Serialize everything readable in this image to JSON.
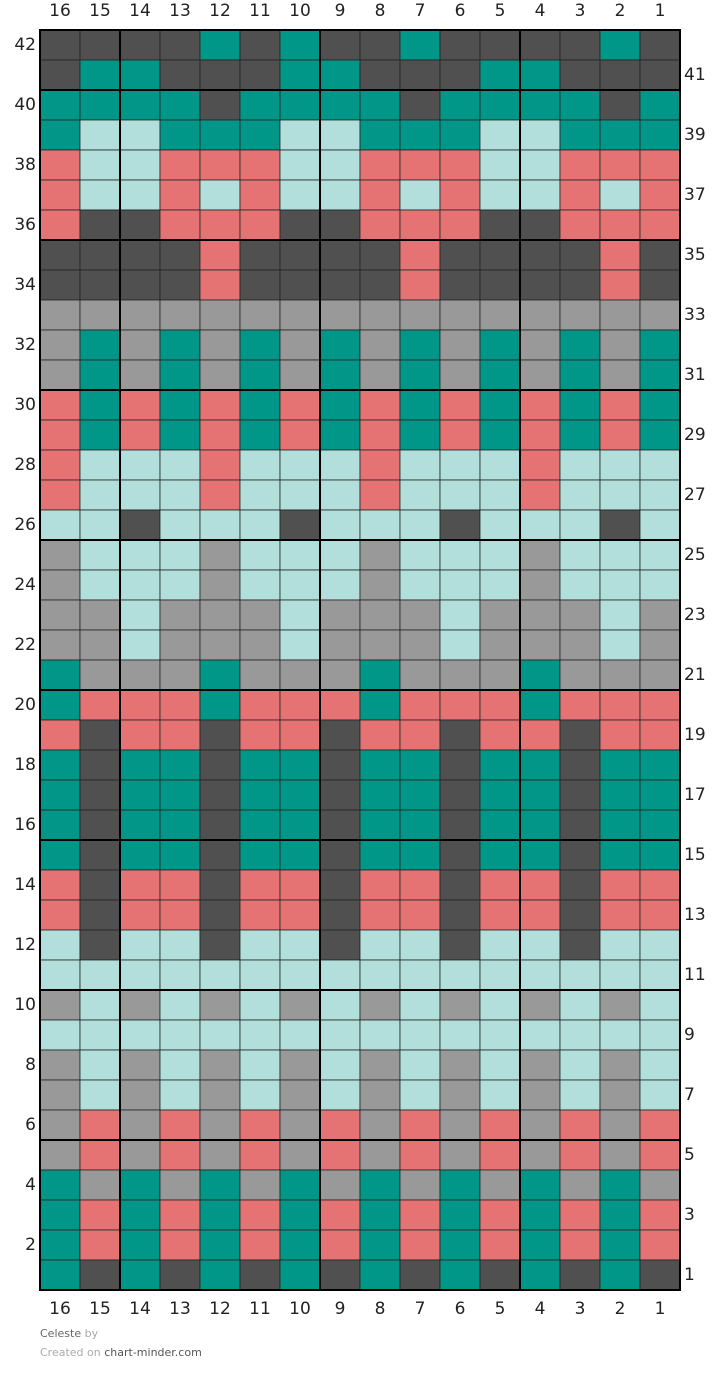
{
  "chart": {
    "columns": [
      16,
      15,
      14,
      13,
      12,
      11,
      10,
      9,
      8,
      7,
      6,
      5,
      4,
      3,
      2,
      1
    ],
    "palette": {
      "D": "#505050",
      "T": "#009688",
      "L": "#b2dfdb",
      "P": "#e57373",
      "G": "#999999"
    },
    "rows": [
      {
        "number": 42,
        "cells": "DDDDTDTDDTDDDDTD"
      },
      {
        "number": 41,
        "cells": "DTTDDDTTDDDTTDDD"
      },
      {
        "number": 40,
        "cells": "TTTTDTTTTDTTTTDT"
      },
      {
        "number": 39,
        "cells": "TLLTTTLLTTTLLTTT"
      },
      {
        "number": 38,
        "cells": "PLLPPPLLPPPLLPPP"
      },
      {
        "number": 37,
        "cells": "PLLPLPLLPLPLLPLP"
      },
      {
        "number": 36,
        "cells": "PDDPPPDDPPPDDPPP"
      },
      {
        "number": 35,
        "cells": "DDDDPDDDDPDDDDPD"
      },
      {
        "number": 34,
        "cells": "DDDDPDDDDPDDDDPD"
      },
      {
        "number": 33,
        "cells": "GGGGGGGGGGGGGGGG"
      },
      {
        "number": 32,
        "cells": "GTGTGTGTGTGTGTGT"
      },
      {
        "number": 31,
        "cells": "GTGTGTGTGTGTGTGT"
      },
      {
        "number": 30,
        "cells": "PTPTPTPTPTPTPTPT"
      },
      {
        "number": 29,
        "cells": "PTPTPTPTPTPTPTPT"
      },
      {
        "number": 28,
        "cells": "PLLLPLLLPLLLPLLL"
      },
      {
        "number": 27,
        "cells": "PLLLPLLLPLLLPLLL"
      },
      {
        "number": 26,
        "cells": "LLDLLLDLLLDLLLDL"
      },
      {
        "number": 25,
        "cells": "GLLLGLLLGLLLGLLL"
      },
      {
        "number": 24,
        "cells": "GLLLGLLLGLLLGLLL"
      },
      {
        "number": 23,
        "cells": "GGLGGGLGGGLGGGLG"
      },
      {
        "number": 22,
        "cells": "GGLGGGLGGGLGGGLG"
      },
      {
        "number": 21,
        "cells": "TGGGTGGGTGGGTGGG"
      },
      {
        "number": 20,
        "cells": "TPPPTPPPTPPPTPPP"
      },
      {
        "number": 19,
        "cells": "PDPPDPPDPPDPPDPP"
      },
      {
        "number": 18,
        "cells": "TDTTDTTDTTDTTDTT"
      },
      {
        "number": 17,
        "cells": "TDTTDTTDTTDTTDTT"
      },
      {
        "number": 16,
        "cells": "TDTTDTTDTTDTTDTT"
      },
      {
        "number": 15,
        "cells": "TDTTDTTDTTDTTDTT"
      },
      {
        "number": 14,
        "cells": "PDPPDPPDPPDPPDPP"
      },
      {
        "number": 13,
        "cells": "PDPPDPPDPPDPPDPP"
      },
      {
        "number": 12,
        "cells": "LDLLDLLDLLDLLDLL"
      },
      {
        "number": 11,
        "cells": "LLLLLLLLLLLLLLLL"
      },
      {
        "number": 10,
        "cells": "GLGLGLGLGLGLGLGL"
      },
      {
        "number": 9,
        "cells": "LLLLLLLLLLLLLLLL"
      },
      {
        "number": 8,
        "cells": "GLGLGLGLGLGLGLGL"
      },
      {
        "number": 7,
        "cells": "GLGLGLGLGLGLGLGL"
      },
      {
        "number": 6,
        "cells": "GPGPGPGPGPGPGPGP"
      },
      {
        "number": 5,
        "cells": "GPGPGPGPGPGPGPGP"
      },
      {
        "number": 4,
        "cells": "TGTGTGTGTGTGTGTG"
      },
      {
        "number": 3,
        "cells": "TPTPTPTPTPTPTPTP"
      },
      {
        "number": 2,
        "cells": "TPTPTPTPTPTPTPTP"
      },
      {
        "number": 1,
        "cells": "TDTDTDTDTDTDTDTD"
      }
    ]
  },
  "footer": {
    "title": "Celeste",
    "by": "by",
    "created": "Created on",
    "site": "chart-minder.com"
  }
}
